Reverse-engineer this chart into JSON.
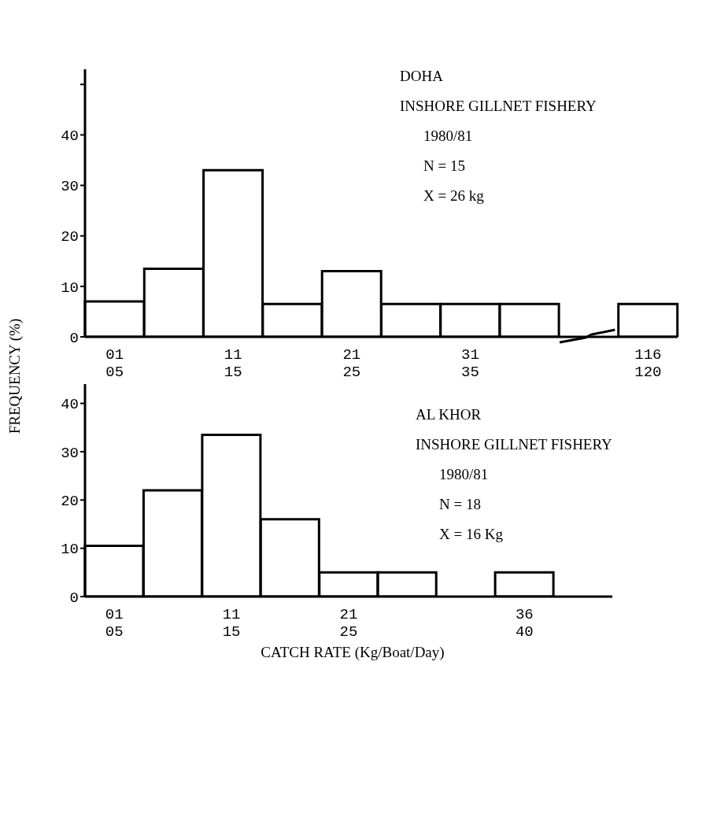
{
  "chart_data": [
    {
      "type": "bar",
      "ylabel": "FREQUENCY (%)",
      "categories": [
        "01\n05",
        null,
        "11\n15",
        null,
        "21\n25",
        null,
        "31\n35",
        null,
        null,
        "116\n120"
      ],
      "values": [
        7,
        13.5,
        33,
        6.5,
        13,
        6.5,
        6.5,
        6.5,
        null,
        6.5
      ],
      "color": "#ffffff",
      "ylim": [
        0,
        53
      ],
      "yticks": [
        0,
        10,
        20,
        30,
        40,
        {
          "value": 50,
          "label": null
        }
      ],
      "annotations": [
        "DOHA",
        "INSHORE GILLNET FISHERY",
        "1980/81",
        "N = 15",
        "X = 26 kg"
      ]
    },
    {
      "type": "bar",
      "xlabel": "CATCH RATE (Kg/Boat/Day)",
      "categories": [
        "01\n05",
        null,
        "11\n15",
        null,
        "21\n25",
        null,
        null,
        "36\n40",
        null
      ],
      "values": [
        10.5,
        22,
        33.5,
        16,
        5,
        5,
        null,
        5,
        null
      ],
      "color": "#ffffff",
      "ylim": [
        0,
        44
      ],
      "yticks": [
        0,
        10,
        20,
        30,
        40
      ],
      "annotations": [
        "AL KHOR",
        "INSHORE GILLNET FISHERY",
        "1980/81",
        "N = 18",
        "X = 16 Kg"
      ]
    }
  ]
}
